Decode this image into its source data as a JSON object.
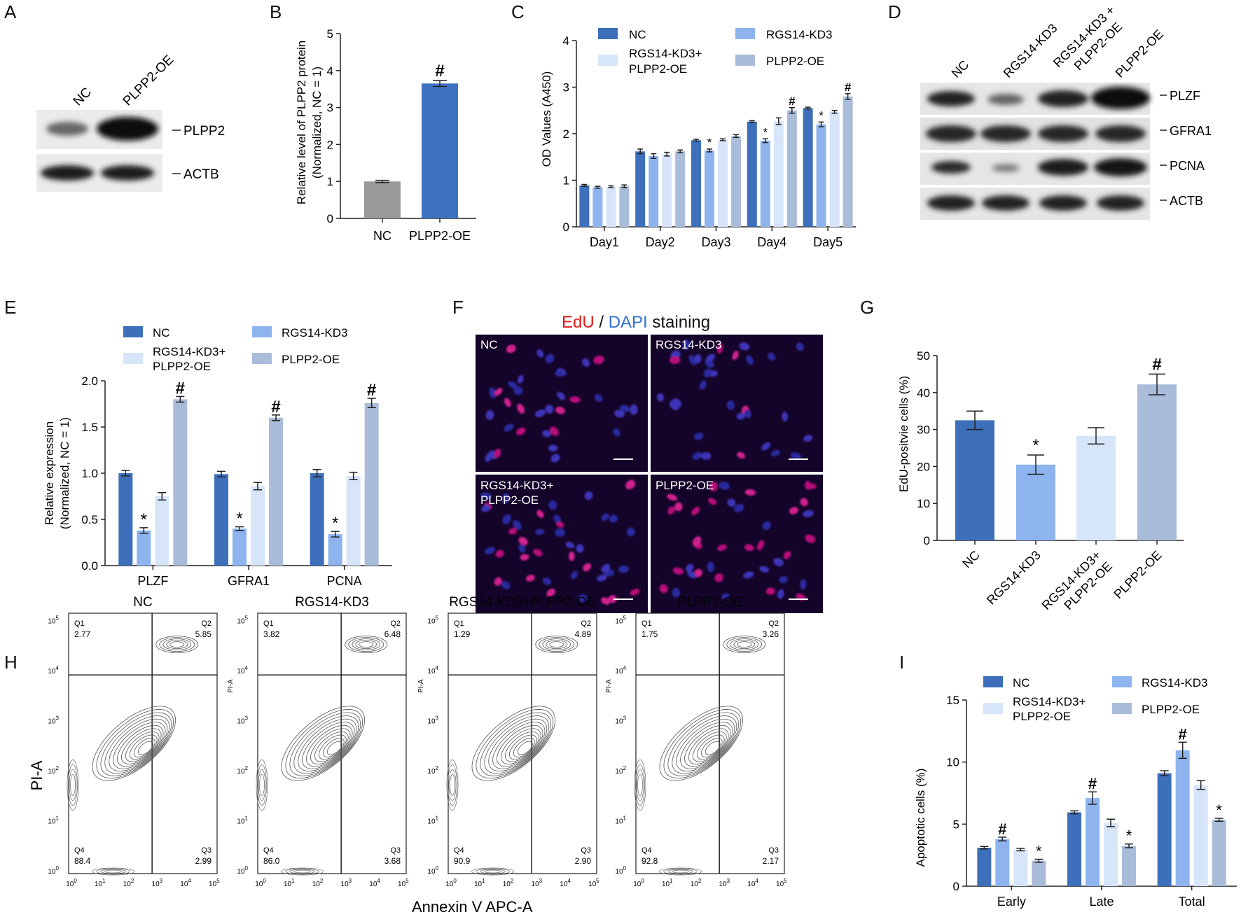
{
  "colors": {
    "nc": "#3d6fba",
    "kd3": "#8db4ef",
    "rescue": "#d7e5f9",
    "oe": "#a9bcd9",
    "gray_bar": "#999999",
    "blue_bar": "#3d72c0",
    "edu": "#e21818",
    "dapi": "#2f6fd1",
    "micro_bg": "#15042a",
    "blot_bg": "#e9e9e9"
  },
  "panel_letters": [
    "A",
    "B",
    "C",
    "D",
    "E",
    "F",
    "G",
    "H",
    "I"
  ],
  "legend": {
    "nc": "NC",
    "kd3": "RGS14-KD3",
    "rescue_line1": "RGS14-KD3+",
    "rescue_line2": "PLPP2-OE",
    "oe": "PLPP2-OE"
  },
  "panelA": {
    "lanes": [
      "NC",
      "PLPP2-OE"
    ],
    "bands": [
      "PLPP2",
      "ACTB"
    ]
  },
  "panelD": {
    "lanes": [
      "NC",
      "RGS14-KD3",
      "RGS14-KD3 +\nPLPP2-OE",
      "PLPP2-OE"
    ],
    "bands": [
      "PLZF",
      "GFRA1",
      "PCNA",
      "ACTB"
    ]
  },
  "panelF": {
    "title_edu": "EdU",
    "title_sep": " / ",
    "title_dapi": "DAPI",
    "title_rest": " staining",
    "labels": [
      "NC",
      "RGS14-KD3",
      "RGS14-KD3+\nPLPP2-OE",
      "PLPP2-OE"
    ]
  },
  "panelH": {
    "titles": [
      "NC",
      "RGS14-KD3",
      "RGS14-KD3+PLPP2-OE",
      "PLPP2-OE"
    ],
    "quadrants": [
      {
        "Q1": "2.77",
        "Q2": "5.85",
        "Q3": "2.99",
        "Q4": "88.4"
      },
      {
        "Q1": "3.82",
        "Q2": "6.48",
        "Q3": "3.68",
        "Q4": "86.0"
      },
      {
        "Q1": "1.29",
        "Q2": "4.89",
        "Q3": "2.90",
        "Q4": "90.9"
      },
      {
        "Q1": "1.75",
        "Q2": "3.26",
        "Q3": "2.17",
        "Q4": "92.8"
      }
    ],
    "xlabel": "Annexin V APC-A",
    "ylabel": "PI-A",
    "ylabel_small": "PI-A"
  },
  "chart_data": [
    {
      "id": "B",
      "type": "bar",
      "categories": [
        "NC",
        "PLPP2-OE"
      ],
      "values": [
        1.0,
        3.65
      ],
      "errors": [
        0.03,
        0.08
      ],
      "marks": [
        "",
        "#"
      ],
      "ylabel": "Relative level of PLPP2 protein\n(Normalized, NC = 1)",
      "ylim": [
        0,
        5
      ],
      "yticks": [
        0,
        1,
        2,
        3,
        4,
        5
      ]
    },
    {
      "id": "C",
      "type": "bar",
      "categories": [
        "Day1",
        "Day2",
        "Day3",
        "Day4",
        "Day5"
      ],
      "series": [
        {
          "name": "NC",
          "values": [
            0.89,
            1.62,
            1.86,
            2.26,
            2.55
          ],
          "errors": [
            0.02,
            0.05,
            0.02,
            0.02,
            0.02
          ],
          "marks": [
            "",
            "",
            "",
            "",
            ""
          ]
        },
        {
          "name": "RGS14-KD3",
          "values": [
            0.85,
            1.52,
            1.64,
            1.85,
            2.2
          ],
          "errors": [
            0.02,
            0.05,
            0.03,
            0.04,
            0.05
          ],
          "marks": [
            "",
            "",
            "*",
            "*",
            "*"
          ]
        },
        {
          "name": "RGS14-KD3+PLPP2-OE",
          "values": [
            0.86,
            1.56,
            1.87,
            2.27,
            2.47
          ],
          "errors": [
            0.02,
            0.04,
            0.02,
            0.07,
            0.03
          ],
          "marks": [
            "",
            "",
            "",
            "",
            ""
          ]
        },
        {
          "name": "PLPP2-OE",
          "values": [
            0.87,
            1.62,
            1.95,
            2.5,
            2.8
          ],
          "errors": [
            0.03,
            0.03,
            0.03,
            0.06,
            0.06
          ],
          "marks": [
            "",
            "",
            "",
            "#",
            "#"
          ]
        }
      ],
      "ylabel": "OD Values (A450)",
      "ylim": [
        0,
        4
      ],
      "yticks": [
        0,
        1,
        2,
        3,
        4
      ]
    },
    {
      "id": "E",
      "type": "bar",
      "categories": [
        "PLZF",
        "GFRA1",
        "PCNA"
      ],
      "series": [
        {
          "name": "NC",
          "values": [
            1.0,
            0.99,
            1.0
          ],
          "errors": [
            0.03,
            0.03,
            0.04
          ],
          "marks": [
            "",
            "",
            ""
          ]
        },
        {
          "name": "RGS14-KD3",
          "values": [
            0.38,
            0.4,
            0.34
          ],
          "errors": [
            0.03,
            0.02,
            0.03
          ],
          "marks": [
            "*",
            "*",
            "*"
          ]
        },
        {
          "name": "RGS14-KD3+PLPP2-OE",
          "values": [
            0.75,
            0.86,
            0.97
          ],
          "errors": [
            0.04,
            0.04,
            0.04
          ],
          "marks": [
            "",
            "",
            ""
          ]
        },
        {
          "name": "PLPP2-OE",
          "values": [
            1.8,
            1.6,
            1.76
          ],
          "errors": [
            0.03,
            0.03,
            0.05
          ],
          "marks": [
            "#",
            "#",
            "#"
          ]
        }
      ],
      "ylabel": "Relative expression\n(Normalized, NC = 1)",
      "ylim": [
        0,
        2.0
      ],
      "yticks": [
        "0.0",
        "0.5",
        "1.0",
        "1.5",
        "2.0"
      ]
    },
    {
      "id": "G",
      "type": "bar",
      "categories": [
        "NC",
        "RGS14-KD3",
        "RGS14-KD3+\nPLPP2-OE",
        "PLPP2-OE"
      ],
      "values": [
        32.5,
        20.5,
        28.3,
        42.2
      ],
      "errors": [
        2.5,
        2.6,
        2.2,
        2.8
      ],
      "marks": [
        "",
        "*",
        "",
        "#"
      ],
      "ylabel": "EdU-positvie cells (%)",
      "ylim": [
        0,
        50
      ],
      "yticks": [
        0,
        10,
        20,
        30,
        40,
        50
      ]
    },
    {
      "id": "I",
      "type": "bar",
      "categories": [
        "Early",
        "Late",
        "Total"
      ],
      "series": [
        {
          "name": "NC",
          "values": [
            3.1,
            5.95,
            9.1
          ],
          "errors": [
            0.1,
            0.12,
            0.2
          ],
          "marks": [
            "",
            "",
            ""
          ]
        },
        {
          "name": "RGS14-KD3",
          "values": [
            3.8,
            7.1,
            10.95
          ],
          "errors": [
            0.15,
            0.5,
            0.65
          ],
          "marks": [
            "#",
            "#",
            "#"
          ]
        },
        {
          "name": "RGS14-KD3+PLPP2-OE",
          "values": [
            2.95,
            5.1,
            8.15
          ],
          "errors": [
            0.1,
            0.3,
            0.35
          ],
          "marks": [
            "",
            "",
            ""
          ]
        },
        {
          "name": "PLPP2-OE",
          "values": [
            2.05,
            3.25,
            5.35
          ],
          "errors": [
            0.12,
            0.15,
            0.12
          ],
          "marks": [
            "*",
            "*",
            "*"
          ]
        }
      ],
      "ylabel": "Apoptotic cells (%)",
      "ylim": [
        0,
        15
      ],
      "yticks": [
        0,
        5,
        10,
        15
      ]
    }
  ]
}
